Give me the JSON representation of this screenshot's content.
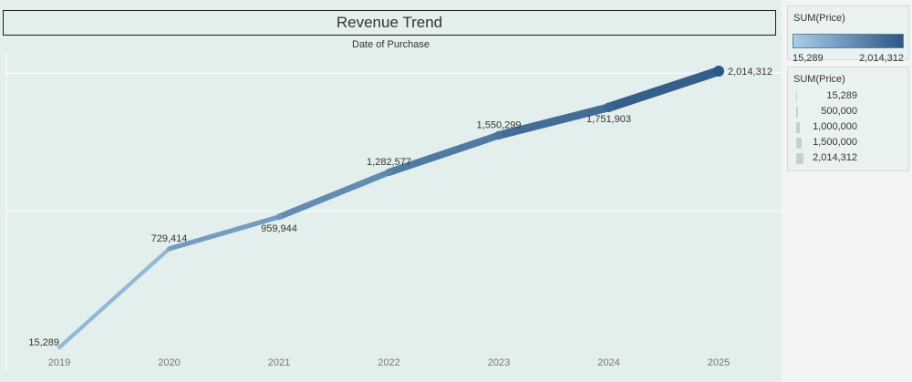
{
  "chart_data": {
    "type": "line",
    "title": "Revenue Trend",
    "subtitle": "Date of Purchase",
    "measure": "SUM(Price)",
    "x": [
      "2019",
      "2020",
      "2021",
      "2022",
      "2023",
      "2024",
      "2025"
    ],
    "values": [
      15289,
      729414,
      959944,
      1282577,
      1550299,
      1751903,
      2014312
    ],
    "labels": [
      "15,289",
      "729,414",
      "959,944",
      "1,282,577",
      "1,550,299",
      "1,751,903",
      "2,014,312"
    ],
    "label_position": [
      "left",
      "above",
      "below",
      "above",
      "above",
      "below",
      "right"
    ],
    "ylim": [
      0,
      2100000
    ],
    "gridlines": [
      1000000,
      2000000
    ],
    "color_range": {
      "min": 15289,
      "max": 2014312,
      "min_color": "#a9cde9",
      "max_color": "#2c5685"
    },
    "size_range": {
      "min": 15289,
      "max": 2014312
    }
  },
  "legends": {
    "color": {
      "title": "SUM(Price)",
      "min_label": "15,289",
      "max_label": "2,014,312"
    },
    "size": {
      "title": "SUM(Price)",
      "items": [
        {
          "label": "15,289",
          "value": 15289
        },
        {
          "label": "500,000",
          "value": 500000
        },
        {
          "label": "1,000,000",
          "value": 1000000
        },
        {
          "label": "1,500,000",
          "value": 1500000
        },
        {
          "label": "2,014,312",
          "value": 2014312
        }
      ]
    }
  },
  "colors": {
    "background": "#e2efec",
    "grid": "#ffffff",
    "axis_text": "#777777",
    "label_text": "#333333"
  }
}
